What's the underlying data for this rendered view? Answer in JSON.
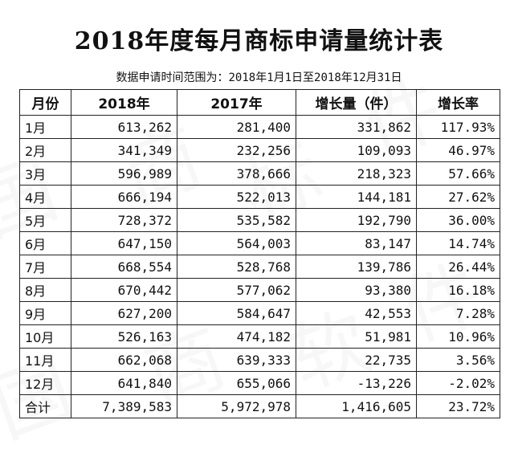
{
  "title": "2018年度每月商标申请量统计表",
  "subtitle": "数据申请时间范围为：2018年1月1日至2018年12月31日",
  "table": {
    "headers": [
      "月份",
      "2018年",
      "2017年",
      "增长量（件）",
      "增长率"
    ],
    "rows": [
      [
        "1月",
        "613,262",
        "281,400",
        "331,862",
        "117.93%"
      ],
      [
        "2月",
        "341,349",
        "232,256",
        "109,093",
        "46.97%"
      ],
      [
        "3月",
        "596,989",
        "378,666",
        "218,323",
        "57.66%"
      ],
      [
        "4月",
        "666,194",
        "522,013",
        "144,181",
        "27.62%"
      ],
      [
        "5月",
        "728,372",
        "535,582",
        "192,790",
        "36.00%"
      ],
      [
        "6月",
        "647,150",
        "564,003",
        "83,147",
        "14.74%"
      ],
      [
        "7月",
        "668,554",
        "528,768",
        "139,786",
        "26.44%"
      ],
      [
        "8月",
        "670,442",
        "577,062",
        "93,380",
        "16.18%"
      ],
      [
        "9月",
        "627,200",
        "584,647",
        "42,553",
        "7.28%"
      ],
      [
        "10月",
        "526,163",
        "474,182",
        "51,981",
        "10.96%"
      ],
      [
        "11月",
        "662,068",
        "639,333",
        "22,735",
        "3.56%"
      ],
      [
        "12月",
        "641,840",
        "655,066",
        "-13,226",
        "-2.02%"
      ]
    ],
    "total": [
      "合计",
      "7,389,583",
      "5,972,978",
      "1,416,605",
      "23.72%"
    ]
  }
}
